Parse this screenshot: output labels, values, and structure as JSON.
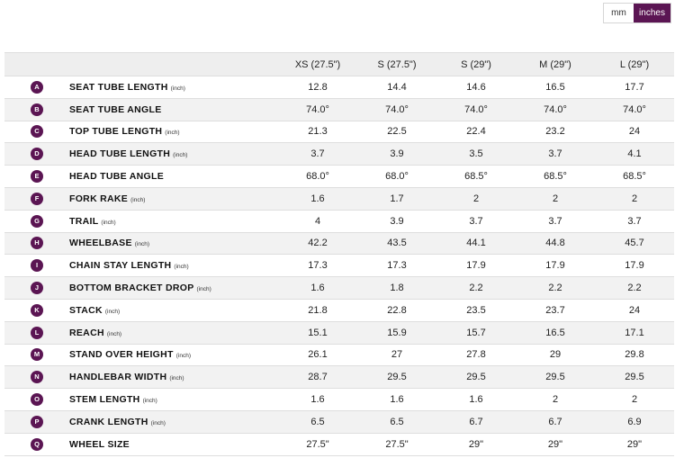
{
  "units": {
    "mm_label": "mm",
    "inches_label": "inches",
    "active": "inches",
    "active_color": "#5b1553"
  },
  "table": {
    "sizes": [
      "XS (27.5\")",
      "S (27.5\")",
      "S (29\")",
      "M (29\")",
      "L (29\")"
    ],
    "rows": [
      {
        "letter": "A",
        "name": "SEAT TUBE LENGTH",
        "unit": "(inch)",
        "values": [
          "12.8",
          "14.4",
          "14.6",
          "16.5",
          "17.7"
        ]
      },
      {
        "letter": "B",
        "name": "SEAT TUBE ANGLE",
        "unit": "",
        "values": [
          "74.0°",
          "74.0°",
          "74.0°",
          "74.0°",
          "74.0°"
        ]
      },
      {
        "letter": "C",
        "name": "TOP TUBE LENGTH",
        "unit": "(inch)",
        "values": [
          "21.3",
          "22.5",
          "22.4",
          "23.2",
          "24"
        ]
      },
      {
        "letter": "D",
        "name": "HEAD TUBE LENGTH",
        "unit": "(inch)",
        "values": [
          "3.7",
          "3.9",
          "3.5",
          "3.7",
          "4.1"
        ]
      },
      {
        "letter": "E",
        "name": "HEAD TUBE ANGLE",
        "unit": "",
        "values": [
          "68.0°",
          "68.0°",
          "68.5°",
          "68.5°",
          "68.5°"
        ]
      },
      {
        "letter": "F",
        "name": "FORK RAKE",
        "unit": "(inch)",
        "values": [
          "1.6",
          "1.7",
          "2",
          "2",
          "2"
        ]
      },
      {
        "letter": "G",
        "name": "TRAIL",
        "unit": "(inch)",
        "values": [
          "4",
          "3.9",
          "3.7",
          "3.7",
          "3.7"
        ]
      },
      {
        "letter": "H",
        "name": "WHEELBASE",
        "unit": "(inch)",
        "values": [
          "42.2",
          "43.5",
          "44.1",
          "44.8",
          "45.7"
        ]
      },
      {
        "letter": "I",
        "name": "CHAIN STAY LENGTH",
        "unit": "(inch)",
        "values": [
          "17.3",
          "17.3",
          "17.9",
          "17.9",
          "17.9"
        ]
      },
      {
        "letter": "J",
        "name": "BOTTOM BRACKET DROP",
        "unit": "(inch)",
        "values": [
          "1.6",
          "1.8",
          "2.2",
          "2.2",
          "2.2"
        ]
      },
      {
        "letter": "K",
        "name": "STACK",
        "unit": "(inch)",
        "values": [
          "21.8",
          "22.8",
          "23.5",
          "23.7",
          "24"
        ]
      },
      {
        "letter": "L",
        "name": "REACH",
        "unit": "(inch)",
        "values": [
          "15.1",
          "15.9",
          "15.7",
          "16.5",
          "17.1"
        ]
      },
      {
        "letter": "M",
        "name": "STAND OVER HEIGHT",
        "unit": "(inch)",
        "values": [
          "26.1",
          "27",
          "27.8",
          "29",
          "29.8"
        ]
      },
      {
        "letter": "N",
        "name": "HANDLEBAR WIDTH",
        "unit": "(inch)",
        "values": [
          "28.7",
          "29.5",
          "29.5",
          "29.5",
          "29.5"
        ]
      },
      {
        "letter": "O",
        "name": "STEM LENGTH",
        "unit": "(inch)",
        "values": [
          "1.6",
          "1.6",
          "1.6",
          "2",
          "2"
        ]
      },
      {
        "letter": "P",
        "name": "CRANK LENGTH",
        "unit": "(inch)",
        "values": [
          "6.5",
          "6.5",
          "6.7",
          "6.7",
          "6.9"
        ]
      },
      {
        "letter": "Q",
        "name": "WHEEL SIZE",
        "unit": "",
        "values": [
          "27.5\"",
          "27.5\"",
          "29\"",
          "29\"",
          "29\""
        ]
      }
    ]
  }
}
